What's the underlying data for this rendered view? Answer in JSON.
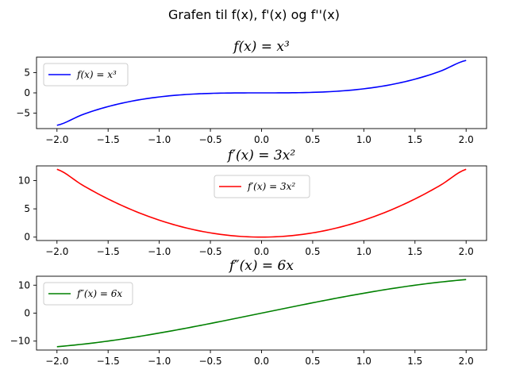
{
  "figure": {
    "suptitle": "Grafen til f(x), f'(x) og f''(x)"
  },
  "chart_data": [
    {
      "type": "line",
      "title": "f(x) = x³",
      "xlabel": "",
      "ylabel": "",
      "xlim": [
        -2.2,
        2.2
      ],
      "ylim": [
        -8.8,
        8.8
      ],
      "xticks": [
        -2.0,
        -1.5,
        -1.0,
        -0.5,
        0.0,
        0.5,
        1.0,
        1.5,
        2.0
      ],
      "xtick_labels": [
        "−2.0",
        "−1.5",
        "−1.0",
        "−0.5",
        "0.0",
        "0.5",
        "1.0",
        "1.5",
        "2.0"
      ],
      "yticks": [
        -5,
        0,
        5
      ],
      "ytick_labels": [
        "−5",
        "0",
        "5"
      ],
      "legend": {
        "position": "upper-left"
      },
      "series": [
        {
          "name": "f(x) = x³",
          "color": "#0000ff",
          "x": [
            -2.0,
            -1.75,
            -1.5,
            -1.25,
            -1.0,
            -0.75,
            -0.5,
            -0.25,
            0.0,
            0.25,
            0.5,
            0.75,
            1.0,
            1.25,
            1.5,
            1.75,
            2.0
          ],
          "y": [
            -8.0,
            -5.36,
            -3.375,
            -1.953,
            -1.0,
            -0.422,
            -0.125,
            -0.016,
            0.0,
            0.016,
            0.125,
            0.422,
            1.0,
            1.953,
            3.375,
            5.36,
            8.0
          ]
        }
      ]
    },
    {
      "type": "line",
      "title": "f′(x) = 3x²",
      "xlabel": "",
      "ylabel": "",
      "xlim": [
        -2.2,
        2.2
      ],
      "ylim": [
        -0.6,
        12.6
      ],
      "xticks": [
        -2.0,
        -1.5,
        -1.0,
        -0.5,
        0.0,
        0.5,
        1.0,
        1.5,
        2.0
      ],
      "xtick_labels": [
        "−2.0",
        "−1.5",
        "−1.0",
        "−0.5",
        "0.0",
        "0.5",
        "1.0",
        "1.5",
        "2.0"
      ],
      "yticks": [
        0,
        5,
        10
      ],
      "ytick_labels": [
        "0",
        "5",
        "10"
      ],
      "legend": {
        "position": "upper-center"
      },
      "series": [
        {
          "name": "f′(x) = 3x²",
          "color": "#ff0000",
          "x": [
            -2.0,
            -1.75,
            -1.5,
            -1.25,
            -1.0,
            -0.75,
            -0.5,
            -0.25,
            0.0,
            0.25,
            0.5,
            0.75,
            1.0,
            1.25,
            1.5,
            1.75,
            2.0
          ],
          "y": [
            12.0,
            9.188,
            6.75,
            4.688,
            3.0,
            1.688,
            0.75,
            0.188,
            0.0,
            0.188,
            0.75,
            1.688,
            3.0,
            4.688,
            6.75,
            9.188,
            12.0
          ]
        }
      ]
    },
    {
      "type": "line",
      "title": "f″(x) = 6x",
      "xlabel": "",
      "ylabel": "",
      "xlim": [
        -2.2,
        2.2
      ],
      "ylim": [
        -13.2,
        13.2
      ],
      "xticks": [
        -2.0,
        -1.5,
        -1.0,
        -0.5,
        0.0,
        0.5,
        1.0,
        1.5,
        2.0
      ],
      "xtick_labels": [
        "−2.0",
        "−1.5",
        "−1.0",
        "−0.5",
        "0.0",
        "0.5",
        "1.0",
        "1.5",
        "2.0"
      ],
      "yticks": [
        -10,
        0,
        10
      ],
      "ytick_labels": [
        "−10",
        "0",
        "10"
      ],
      "legend": {
        "position": "upper-left"
      },
      "series": [
        {
          "name": "f″(x) = 6x",
          "color": "#008000",
          "x": [
            -2.0,
            2.0
          ],
          "y": [
            -12.0,
            12.0
          ]
        }
      ]
    }
  ]
}
